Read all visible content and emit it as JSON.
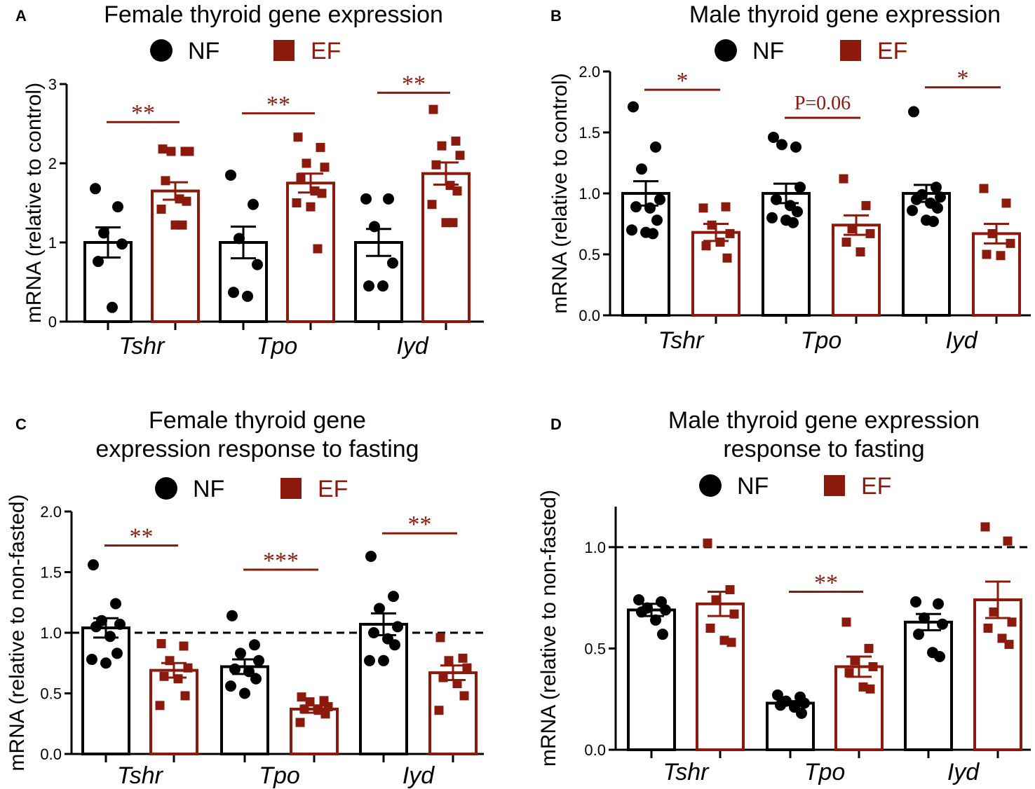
{
  "colors": {
    "nf": "#000000",
    "ef": "#8b1a0c",
    "axis": "#000000"
  },
  "legend": {
    "nf_label": "NF",
    "ef_label": "EF"
  },
  "chart_data": [
    {
      "panel": "A",
      "type": "bar",
      "title": [
        "Female thyroid gene expression"
      ],
      "ylabel": "mRNA (relative to control)",
      "ylim": [
        0,
        3
      ],
      "yticks": [
        0,
        1,
        2,
        3
      ],
      "ytick_labels": [
        "0",
        "1",
        "2",
        "3"
      ],
      "reference_line": null,
      "categories": [
        "Tshr",
        "Tpo",
        "Iyd"
      ],
      "series": [
        {
          "name": "NF",
          "values": [
            1.0,
            1.0,
            1.0
          ],
          "sem": [
            0.19,
            0.2,
            0.17
          ],
          "points": [
            [
              1.68,
              1.45,
              1.12,
              0.98,
              0.76,
              0.18
            ],
            [
              1.85,
              1.48,
              1.05,
              0.72,
              0.37,
              0.32
            ],
            [
              1.55,
              1.55,
              1.2,
              0.74,
              0.45,
              0.45
            ]
          ]
        },
        {
          "name": "EF",
          "values": [
            1.65,
            1.75,
            1.87
          ],
          "sem": [
            0.11,
            0.12,
            0.14
          ],
          "points": [
            [
              2.18,
              2.15,
              2.15,
              2.15,
              1.78,
              1.55,
              1.52,
              1.42,
              1.22,
              1.22
            ],
            [
              2.33,
              2.2,
              2.0,
              1.95,
              1.82,
              1.65,
              1.62,
              1.5,
              1.45,
              0.92
            ],
            [
              2.68,
              2.28,
              2.22,
              2.1,
              1.98,
              1.72,
              1.65,
              1.48,
              1.25,
              1.25
            ]
          ]
        }
      ],
      "significance": [
        {
          "category": "Tshr",
          "label": "**",
          "y": 2.52
        },
        {
          "category": "Tpo",
          "label": "**",
          "y": 2.63
        },
        {
          "category": "Iyd",
          "label": "**",
          "y": 2.89
        }
      ]
    },
    {
      "panel": "B",
      "type": "bar",
      "title": [
        "Male thyroid gene expression"
      ],
      "ylabel": "mRNA (relative to control)",
      "ylim": [
        0,
        2
      ],
      "yticks": [
        0,
        0.5,
        1,
        1.5,
        2
      ],
      "ytick_labels": [
        "0.0",
        "0.5",
        "1.0",
        "1.5",
        "2.0"
      ],
      "reference_line": null,
      "categories": [
        "Tshr",
        "Tpo",
        "Iyd"
      ],
      "series": [
        {
          "name": "NF",
          "values": [
            1.0,
            1.0,
            1.0
          ],
          "sem": [
            0.1,
            0.08,
            0.07
          ],
          "points": [
            [
              1.71,
              1.38,
              1.2,
              0.95,
              0.89,
              0.88,
              0.78,
              0.7,
              0.68,
              0.67
            ],
            [
              1.46,
              1.38,
              1.4,
              1.05,
              0.95,
              0.9,
              0.85,
              0.8,
              0.78,
              0.76
            ],
            [
              1.67,
              1.05,
              0.99,
              0.97,
              0.95,
              0.92,
              0.88,
              0.86,
              0.78,
              0.77
            ]
          ]
        },
        {
          "name": "EF",
          "values": [
            0.68,
            0.74,
            0.67
          ],
          "sem": [
            0.07,
            0.08,
            0.08
          ],
          "points": [
            [
              0.88,
              0.89,
              0.74,
              0.67,
              0.57,
              0.6,
              0.47
            ],
            [
              1.12,
              0.9,
              0.71,
              0.67,
              0.6,
              0.52
            ],
            [
              1.04,
              0.92,
              0.67,
              0.59,
              0.5,
              0.49
            ]
          ]
        }
      ],
      "significance": [
        {
          "category": "Tshr",
          "label": "*",
          "y": 1.85
        },
        {
          "category": "Tpo",
          "label": "P=0.06",
          "y": 1.62
        },
        {
          "category": "Iyd",
          "label": "*",
          "y": 1.87
        }
      ]
    },
    {
      "panel": "C",
      "type": "bar",
      "title": [
        "Female thyroid gene",
        "expression response to fasting"
      ],
      "ylabel": "mRNA (relative to non-fasted)",
      "ylim": [
        0,
        2
      ],
      "yticks": [
        0,
        0.5,
        1,
        1.5,
        2
      ],
      "ytick_labels": [
        "0.0",
        "0.5",
        "1.0",
        "1.5",
        "2.0"
      ],
      "reference_line": 1.0,
      "categories": [
        "Tshr",
        "Tpo",
        "Iyd"
      ],
      "series": [
        {
          "name": "NF",
          "values": [
            1.04,
            0.72,
            1.07
          ],
          "sem": [
            0.08,
            0.06,
            0.09
          ],
          "points": [
            [
              1.56,
              1.24,
              1.1,
              1.07,
              1.05,
              0.97,
              0.83,
              0.78,
              0.75
            ],
            [
              1.14,
              0.9,
              0.83,
              0.77,
              0.7,
              0.68,
              0.62,
              0.56,
              0.5
            ],
            [
              1.63,
              1.3,
              1.2,
              1.05,
              1.0,
              0.95,
              0.9,
              0.77,
              0.77
            ]
          ]
        },
        {
          "name": "EF",
          "values": [
            0.69,
            0.37,
            0.67
          ],
          "sem": [
            0.06,
            0.03,
            0.06
          ],
          "points": [
            [
              0.91,
              0.89,
              0.77,
              0.71,
              0.64,
              0.62,
              0.48,
              0.4
            ],
            [
              0.47,
              0.44,
              0.43,
              0.39,
              0.37,
              0.36,
              0.33,
              0.26
            ],
            [
              0.96,
              0.79,
              0.77,
              0.71,
              0.63,
              0.58,
              0.48,
              0.36
            ]
          ]
        }
      ],
      "significance": [
        {
          "category": "Tshr",
          "label": "**",
          "y": 1.72
        },
        {
          "category": "Tpo",
          "label": "***",
          "y": 1.52
        },
        {
          "category": "Iyd",
          "label": "**",
          "y": 1.82
        }
      ]
    },
    {
      "panel": "D",
      "type": "bar",
      "title": [
        "Male thyroid gene expression",
        "response to fasting"
      ],
      "ylabel": "mRNA (relative to non-fasted)",
      "ylim": [
        0,
        1.2
      ],
      "yticks": [
        0,
        0.5,
        1
      ],
      "ytick_labels": [
        "0.0",
        "0.5",
        "1.0"
      ],
      "reference_line": 1.0,
      "categories": [
        "Tshr",
        "Tpo",
        "Iyd"
      ],
      "series": [
        {
          "name": "NF",
          "values": [
            0.69,
            0.23,
            0.63
          ],
          "sem": [
            0.03,
            0.01,
            0.04
          ],
          "points": [
            [
              0.74,
              0.73,
              0.7,
              0.69,
              0.68,
              0.64,
              0.57
            ],
            [
              0.27,
              0.26,
              0.24,
              0.23,
              0.22,
              0.21,
              0.18
            ],
            [
              0.73,
              0.72,
              0.65,
              0.62,
              0.57,
              0.48,
              0.46
            ]
          ]
        },
        {
          "name": "EF",
          "values": [
            0.72,
            0.41,
            0.74
          ],
          "sem": [
            0.06,
            0.05,
            0.09
          ],
          "points": [
            [
              1.02,
              0.79,
              0.74,
              0.67,
              0.6,
              0.54,
              0.53
            ],
            [
              0.63,
              0.5,
              0.44,
              0.41,
              0.38,
              0.31,
              0.3
            ],
            [
              1.1,
              1.03,
              0.68,
              0.63,
              0.6,
              0.55,
              0.52
            ]
          ]
        }
      ],
      "significance": [
        {
          "category": "Tpo",
          "label": "**",
          "y": 0.78
        }
      ]
    }
  ]
}
